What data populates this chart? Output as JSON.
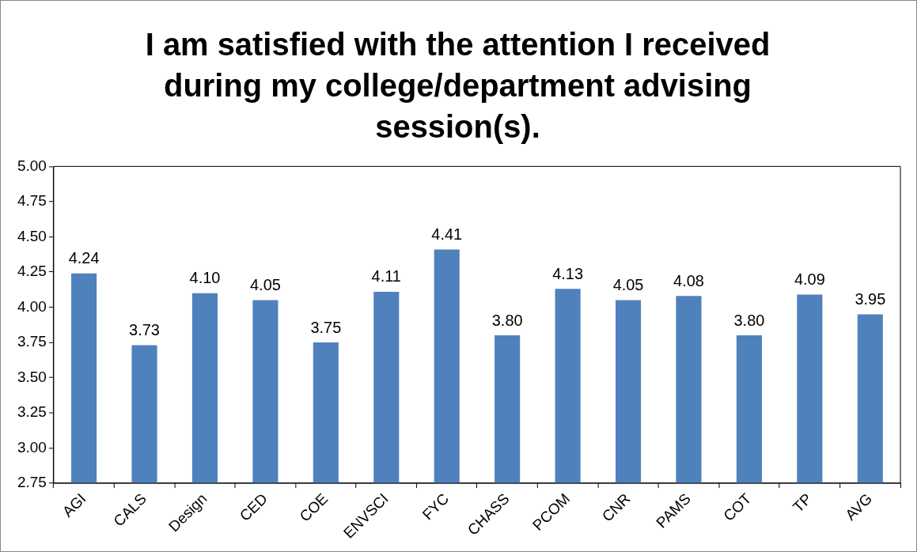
{
  "chart_data": {
    "type": "bar",
    "title": "I am satisfied with the attention I received during my college/department advising session(s).",
    "categories": [
      "AGI",
      "CALS",
      "Design",
      "CED",
      "COE",
      "ENVSCI",
      "FYC",
      "CHASS",
      "PCOM",
      "CNR",
      "PAMS",
      "COT",
      "TP",
      "AVG"
    ],
    "values": [
      4.24,
      3.73,
      4.1,
      4.05,
      3.75,
      4.11,
      4.41,
      3.8,
      4.13,
      4.05,
      4.08,
      3.8,
      4.09,
      3.95
    ],
    "value_labels": [
      "4.24",
      "3.73",
      "4.10",
      "4.05",
      "3.75",
      "4.11",
      "4.41",
      "3.80",
      "4.13",
      "4.05",
      "4.08",
      "3.80",
      "4.09",
      "3.95"
    ],
    "color": "#4f81bd",
    "ylim": [
      2.75,
      5.0
    ],
    "yticks": [
      {
        "value": 2.75,
        "label": "2.75"
      },
      {
        "value": 3,
        "label": "3.00"
      },
      {
        "value": 3.25,
        "label": "3.25"
      },
      {
        "value": 3.5,
        "label": "3.50"
      },
      {
        "value": 3.75,
        "label": "3.75"
      },
      {
        "value": 4,
        "label": "4.00"
      },
      {
        "value": 4.25,
        "label": "4.25"
      },
      {
        "value": 4.5,
        "label": "4.50"
      },
      {
        "value": 4.75,
        "label": "4.75"
      },
      {
        "value": 5,
        "label": "5.00"
      }
    ],
    "legend": false
  }
}
